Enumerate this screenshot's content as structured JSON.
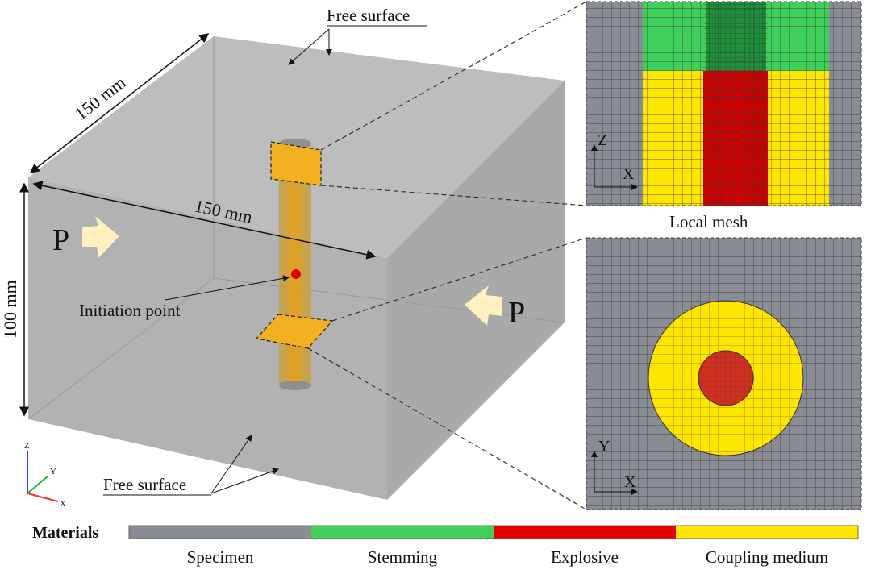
{
  "labels": {
    "free_surface_top": "Free surface",
    "free_surface_bottom": "Free surface",
    "dim_depth": "150 mm",
    "dim_width": "150 mm",
    "dim_height": "100 mm",
    "pressure_left": "P",
    "pressure_right": "P",
    "initiation_point": "Initiation point",
    "local_mesh": "Local mesh",
    "axis_top_vertical": "Z",
    "axis_top_horizontal": "X",
    "axis_bottom_vertical": "Y",
    "axis_bottom_horizontal": "X",
    "triad_z": "Z",
    "triad_y": "Y",
    "triad_x": "X"
  },
  "legend": {
    "title": "Materials",
    "items": [
      {
        "label": "Specimen",
        "color": "#8a8c94"
      },
      {
        "label": "Stemming",
        "color": "#3fcf5a"
      },
      {
        "label": "Explosive",
        "color": "#e60000"
      },
      {
        "label": "Coupling medium",
        "color": "#ffe600"
      }
    ]
  },
  "colors": {
    "specimen": "#b4b4b4",
    "borehole": "#e0a020",
    "initiation_point": "#dd0000",
    "mesh_line": "#333333"
  }
}
